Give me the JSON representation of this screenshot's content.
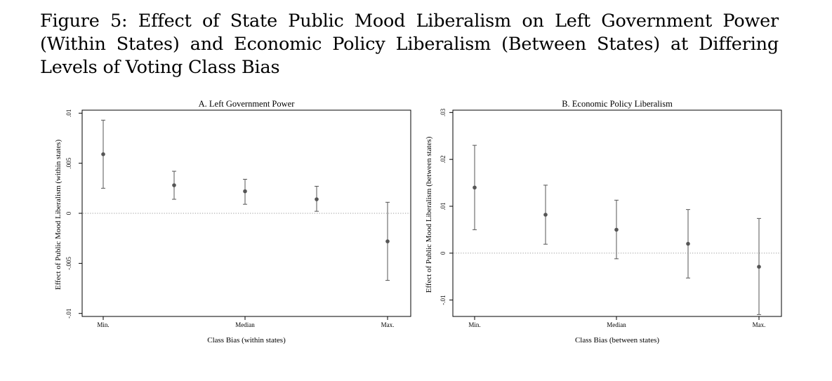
{
  "figure": {
    "caption": "Figure 5: Effect of State Public Mood Liberalism on Left Government Power (Within States) and Economic Policy Liberalism (Between States) at Differing Levels of Voting Class Bias"
  },
  "chart_data": [
    {
      "type": "scatter",
      "subtype": "point-estimate-with-confidence-interval",
      "title": "A. Left Government Power",
      "xlabel": "Class Bias (within states)",
      "ylabel": "Effect of Public Mood Liberalism (within states)",
      "categories": [
        "Min.",
        "",
        "Median",
        "",
        "Max."
      ],
      "x_tick_labels": [
        "Min.",
        "Median",
        "Max."
      ],
      "y_ticks": [
        -0.01,
        -0.005,
        0,
        0.005,
        0.01
      ],
      "y_tick_labels": [
        "-.01",
        "-.005",
        "0",
        ".005",
        ".01"
      ],
      "ylim": [
        -0.0103,
        0.0103
      ],
      "reference_line": 0,
      "series": [
        {
          "points": [
            {
              "estimate": 0.0059,
              "lower": 0.0025,
              "upper": 0.0093
            },
            {
              "estimate": 0.0028,
              "lower": 0.0014,
              "upper": 0.0042
            },
            {
              "estimate": 0.0022,
              "lower": 0.0009,
              "upper": 0.0034
            },
            {
              "estimate": 0.0014,
              "lower": 0.0002,
              "upper": 0.0027
            },
            {
              "estimate": -0.0028,
              "lower": -0.0067,
              "upper": 0.0011
            }
          ]
        }
      ],
      "grid": false,
      "marker_color": "#555555",
      "reference_line_color": "#999999"
    },
    {
      "type": "scatter",
      "subtype": "point-estimate-with-confidence-interval",
      "title": "B. Economic Policy Liberalism",
      "xlabel": "Class Bias (between states)",
      "ylabel": "Effect of Public Mood Liberalism (between states)",
      "categories": [
        "Min.",
        "",
        "Median",
        "",
        "Max."
      ],
      "x_tick_labels": [
        "Min.",
        "Median",
        "Max."
      ],
      "y_ticks": [
        -0.01,
        0,
        0.01,
        0.02,
        0.03
      ],
      "y_tick_labels": [
        "-.01",
        "0",
        ".01",
        ".02",
        ".03"
      ],
      "ylim": [
        -0.0135,
        0.0305
      ],
      "reference_line": 0,
      "series": [
        {
          "points": [
            {
              "estimate": 0.014,
              "lower": 0.005,
              "upper": 0.023
            },
            {
              "estimate": 0.0082,
              "lower": 0.0019,
              "upper": 0.0145
            },
            {
              "estimate": 0.005,
              "lower": -0.0012,
              "upper": 0.0113
            },
            {
              "estimate": 0.002,
              "lower": -0.0053,
              "upper": 0.0093
            },
            {
              "estimate": -0.0029,
              "lower": -0.0131,
              "upper": 0.0074
            }
          ]
        }
      ],
      "grid": false,
      "marker_color": "#555555",
      "reference_line_color": "#999999"
    }
  ]
}
